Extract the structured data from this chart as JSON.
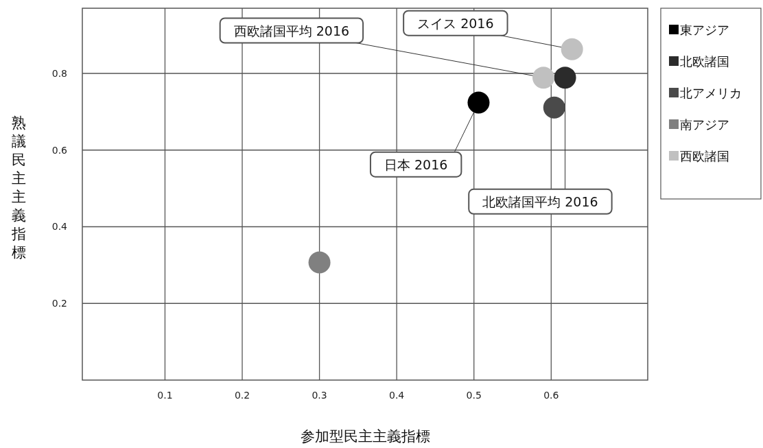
{
  "chart_data": {
    "type": "scatter",
    "xlabel": "参加型民主主義指標",
    "ylabel": "熟議民主主義指標",
    "xlim": [
      -0.007,
      0.725
    ],
    "ylim": [
      0,
      0.97
    ],
    "xticks": [
      0.1,
      0.2,
      0.3,
      0.4,
      0.5,
      0.6
    ],
    "yticks": [
      0.2,
      0.4,
      0.6,
      0.8
    ],
    "grid": true,
    "legend": "right",
    "marker": "circle",
    "series": [
      {
        "name": "東アジア",
        "color": "#000000",
        "x": [
          0.506
        ],
        "values": [
          0.724
        ]
      },
      {
        "name": "北欧諸国",
        "color": "#2b2b2b",
        "x": [
          0.618
        ],
        "values": [
          0.789
        ]
      },
      {
        "name": "北アメリカ",
        "color": "#4a4a4a",
        "x": [
          0.604
        ],
        "values": [
          0.711
        ]
      },
      {
        "name": "南アジア",
        "color": "#808080",
        "x": [
          0.3
        ],
        "values": [
          0.307
        ]
      },
      {
        "name": "西欧諸国",
        "color": "#c0c0c0",
        "x": [
          0.59,
          0.627
        ],
        "values": [
          0.789,
          0.863
        ]
      }
    ],
    "annotations": [
      {
        "text": "西欧諸国平均 2016",
        "x": 0.59,
        "y": 0.789
      },
      {
        "text": "スイス 2016",
        "x": 0.627,
        "y": 0.863
      },
      {
        "text": "日本 2016",
        "x": 0.506,
        "y": 0.724
      },
      {
        "text": "北欧諸国平均 2016",
        "x": 0.618,
        "y": 0.789
      }
    ]
  }
}
